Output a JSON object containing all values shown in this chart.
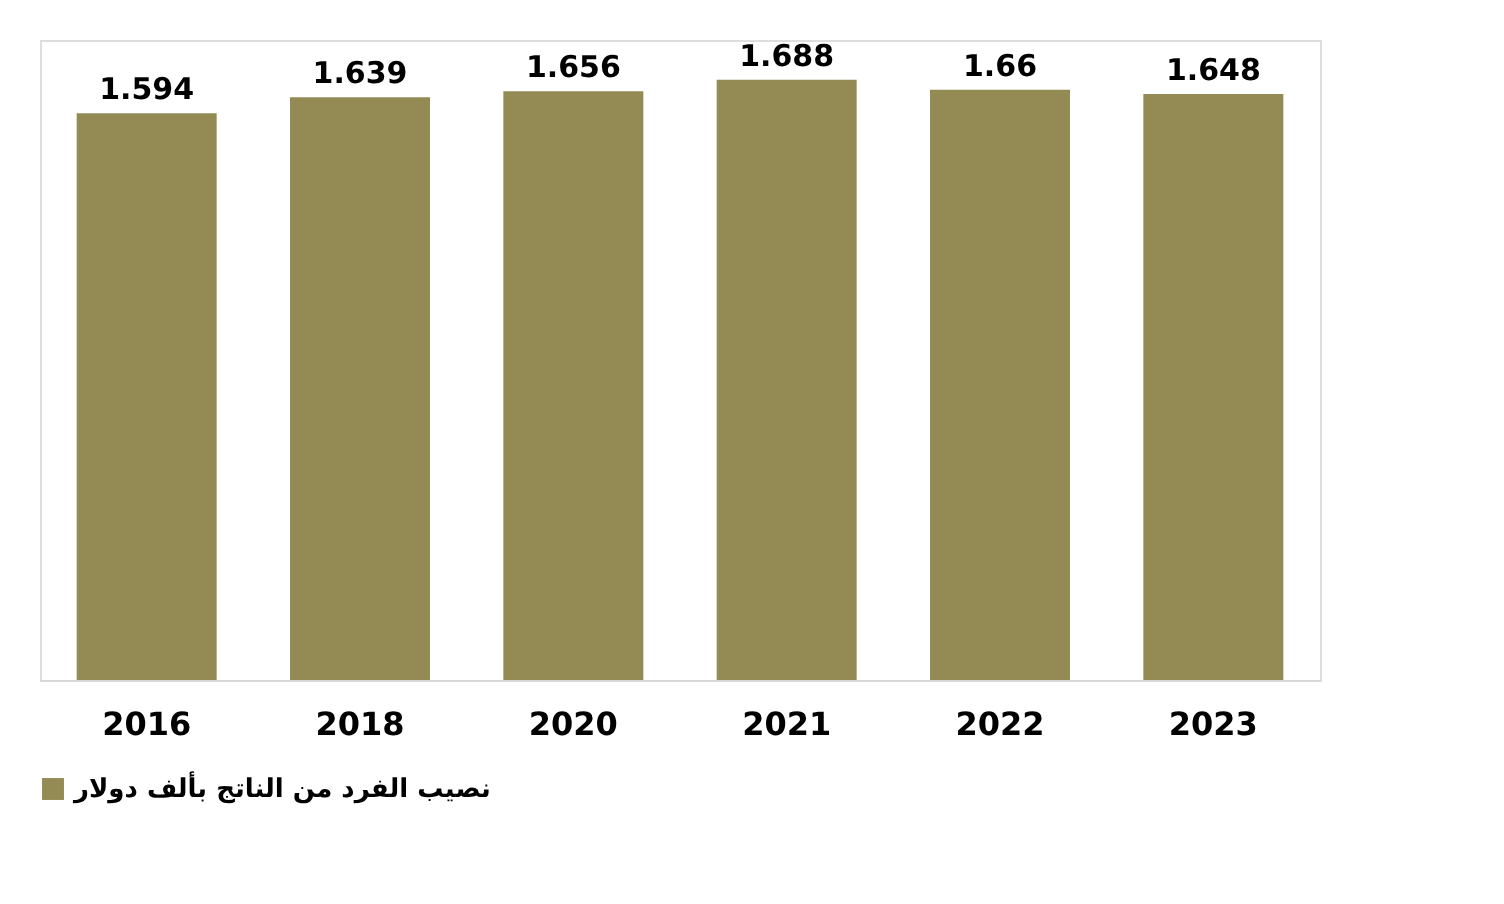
{
  "chart_data": {
    "type": "bar",
    "categories": [
      "2016",
      "2018",
      "2020",
      "2021",
      "2022",
      "2023"
    ],
    "series": [
      {
        "name": "نصيب الفرد من الناتج بألف دولار",
        "color": "#948a54",
        "values": [
          1.594,
          1.639,
          1.656,
          1.688,
          1.66,
          1.648
        ]
      }
    ],
    "data_labels": true,
    "legend": "bottom",
    "grid": false
  }
}
